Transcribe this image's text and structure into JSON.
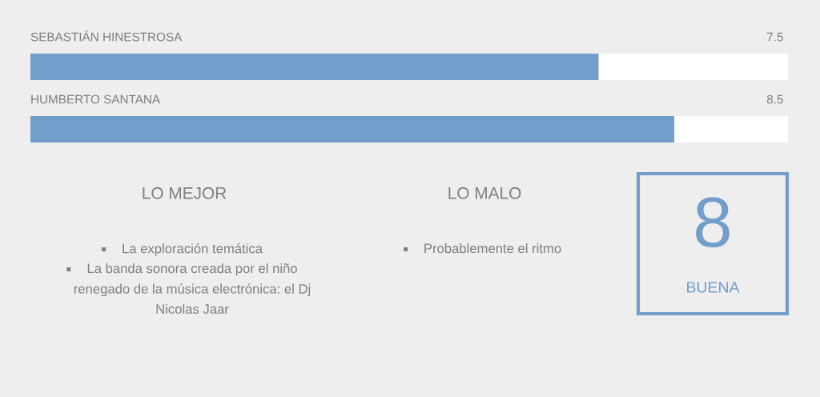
{
  "chart_data": [
    {
      "type": "bar",
      "orientation": "horizontal",
      "categories": [
        "SEBASTIÁN HINESTROSA",
        "HUMBERTO SANTANA"
      ],
      "values": [
        7.5,
        8.5
      ],
      "color": "#729ecb",
      "xlim": [
        0,
        10
      ],
      "data_labels": true,
      "tick_labels": "y"
    },
    {
      "type": "other",
      "title": "LO MEJOR",
      "annotations": [
        "La exploración temática",
        "La banda sonora creada por el niño renegado de la música electrónica: el Dj Nicolas Jaar"
      ]
    },
    {
      "type": "other",
      "title": "LO MALO",
      "annotations": [
        "Probablemente el ritmo"
      ]
    },
    {
      "type": "other",
      "categories": [
        "BUENA"
      ],
      "values": [
        8
      ],
      "color": "#729ecb",
      "data_labels": true
    }
  ]
}
